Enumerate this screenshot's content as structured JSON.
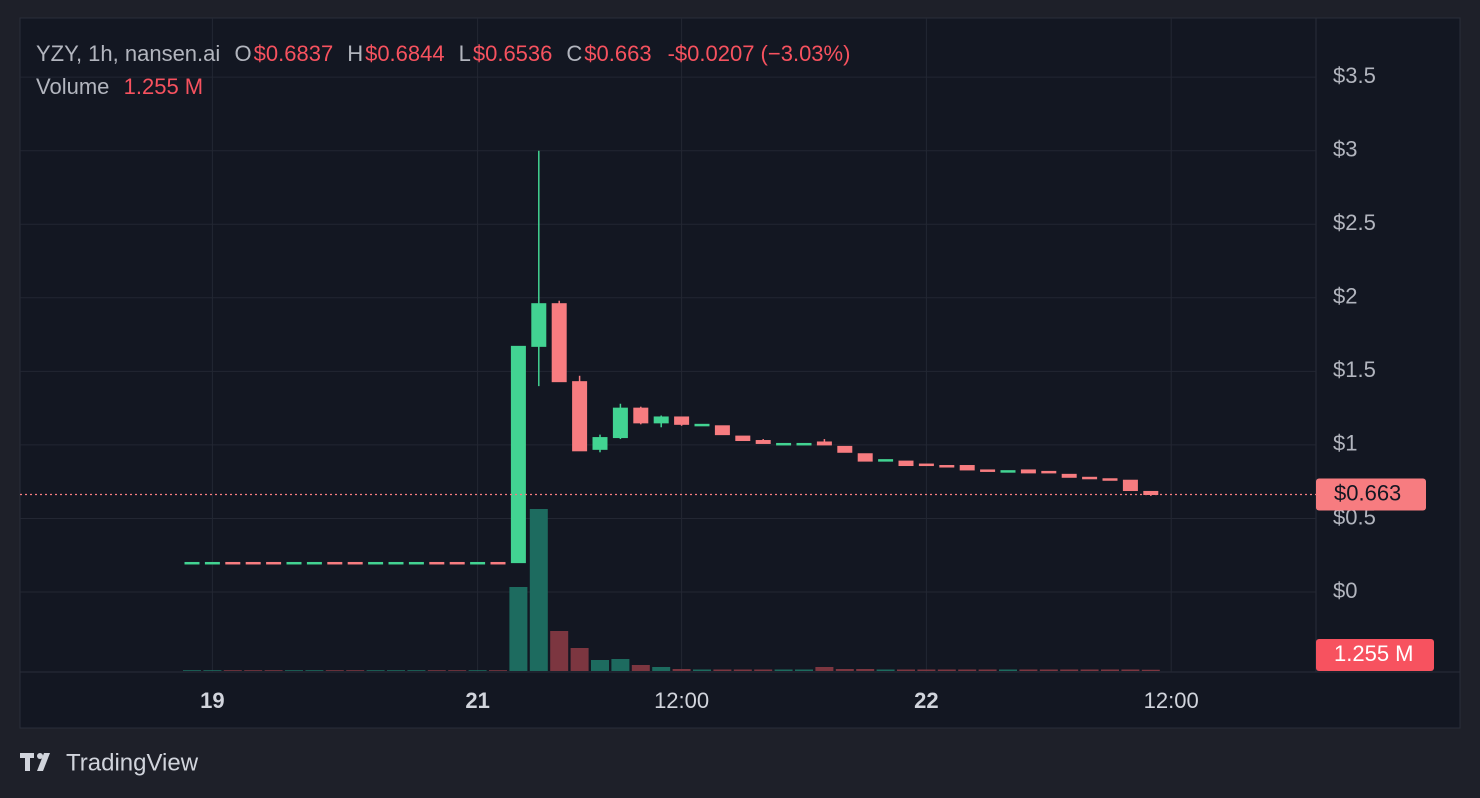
{
  "chart_data": {
    "type": "candlestick",
    "title": "YZY, 1h, nansen.ai",
    "legend_items": [
      {
        "key": "O",
        "label": "$0.6837"
      },
      {
        "key": "H",
        "label": "$0.6844"
      },
      {
        "key": "L",
        "label": "$0.6536"
      },
      {
        "key": "C",
        "label": "$0.663"
      }
    ],
    "change_label": "-$0.0207 (−3.03%)",
    "volume_title": "Volume",
    "volume_label": "1.255 M",
    "last_price_label": "$0.663",
    "brand": "TradingView",
    "categories": [
      null,
      "19",
      null,
      null,
      null,
      null,
      null,
      null,
      null,
      null,
      null,
      null,
      null,
      null,
      "21",
      null,
      null,
      null,
      null,
      null,
      null,
      null,
      null,
      null,
      "12:00",
      null,
      null,
      null,
      null,
      null,
      null,
      null,
      null,
      null,
      null,
      null,
      "22",
      null,
      null,
      null,
      null,
      null,
      null,
      null,
      null,
      null,
      null,
      null,
      "12:00"
    ],
    "open": [
      0.2,
      0.2,
      0.201,
      0.201,
      0.201,
      0.2,
      0.2,
      0.201,
      0.201,
      0.2,
      0.2,
      0.2,
      0.201,
      0.201,
      0.2,
      0.201,
      0.2,
      1.67,
      1.96,
      1.43,
      0.97,
      1.05,
      1.25,
      1.15,
      1.19,
      1.13,
      1.13,
      1.06,
      1.03,
      1.0,
      1.005,
      1.02,
      0.99,
      0.94,
      0.89,
      0.89,
      0.87,
      0.86,
      0.86,
      0.83,
      0.82,
      0.83,
      0.82,
      0.8,
      0.78,
      0.77,
      0.76,
      0.6837,
      null
    ],
    "high": [
      0.201,
      0.201,
      0.201,
      0.201,
      0.201,
      0.201,
      0.201,
      0.201,
      0.201,
      0.201,
      0.201,
      0.201,
      0.201,
      0.201,
      0.201,
      0.201,
      1.67,
      3.0,
      1.98,
      1.47,
      1.07,
      1.28,
      1.26,
      1.2,
      1.19,
      1.14,
      1.13,
      1.06,
      1.04,
      1.01,
      1.01,
      1.04,
      0.99,
      0.94,
      0.9,
      0.89,
      0.87,
      0.86,
      0.86,
      0.83,
      0.825,
      0.83,
      0.82,
      0.8,
      0.78,
      0.77,
      0.76,
      0.6844,
      null
    ],
    "low": [
      0.2,
      0.2,
      0.2,
      0.2,
      0.2,
      0.2,
      0.2,
      0.2,
      0.2,
      0.2,
      0.2,
      0.2,
      0.2,
      0.2,
      0.2,
      0.2,
      0.2,
      1.4,
      1.43,
      0.96,
      0.95,
      1.04,
      1.14,
      1.12,
      1.13,
      1.13,
      1.07,
      1.03,
      1.01,
      1.0,
      1.005,
      1.0,
      0.95,
      0.89,
      0.89,
      0.86,
      0.86,
      0.855,
      0.83,
      0.82,
      0.82,
      0.81,
      0.81,
      0.78,
      0.77,
      0.765,
      0.69,
      0.6536,
      null
    ],
    "close": [
      0.201,
      0.201,
      0.2,
      0.2,
      0.2,
      0.201,
      0.201,
      0.2,
      0.2,
      0.201,
      0.201,
      0.201,
      0.2,
      0.2,
      0.201,
      0.2,
      1.67,
      1.96,
      1.43,
      0.96,
      1.05,
      1.25,
      1.15,
      1.19,
      1.14,
      1.14,
      1.07,
      1.03,
      1.01,
      1.01,
      1.01,
      1.0,
      0.95,
      0.89,
      0.9,
      0.86,
      0.86,
      0.855,
      0.83,
      0.82,
      0.825,
      0.81,
      0.81,
      0.78,
      0.77,
      0.765,
      0.69,
      0.663,
      null
    ],
    "volume": [
      800000,
      800000,
      800000,
      800000,
      800000,
      800000,
      800000,
      800000,
      800000,
      800000,
      800000,
      800000,
      800000,
      800000,
      800000,
      800000,
      84000000,
      162000000,
      40000000,
      23000000,
      11000000,
      12000000,
      6000000,
      4000000,
      2000000,
      1500000,
      1500000,
      1500000,
      1500000,
      1500000,
      1500000,
      4000000,
      2000000,
      2000000,
      1500000,
      1500000,
      1500000,
      1500000,
      1500000,
      1500000,
      1500000,
      1500000,
      1500000,
      1500000,
      1500000,
      1500000,
      1500000,
      1255000,
      null
    ],
    "volume_value_labels": {
      "47": "1.255 M"
    },
    "up_color": "#42d392",
    "down_color": "#f77c80",
    "volume_up_color": "#1d6b5f",
    "volume_down_color": "#7c3640",
    "ylim": [
      -0.5,
      3.8
    ],
    "yticks": [
      {
        "value": 0,
        "label": "$0"
      },
      {
        "value": 0.5,
        "label": "$0.5"
      },
      {
        "value": 1,
        "label": "$1"
      },
      {
        "value": 1.5,
        "label": "$1.5"
      },
      {
        "value": 2,
        "label": "$2"
      },
      {
        "value": 2.5,
        "label": "$2.5"
      },
      {
        "value": 3,
        "label": "$3"
      },
      {
        "value": 3.5,
        "label": "$3.5"
      }
    ],
    "volume_ylim": [
      0,
      170000000
    ],
    "grid": true
  }
}
